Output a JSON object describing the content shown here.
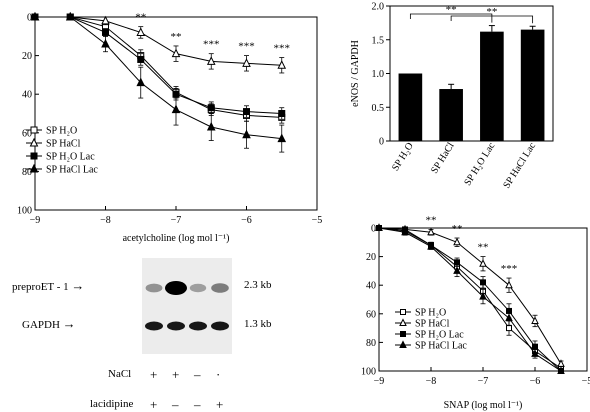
{
  "chart_data": [
    {
      "id": "ach",
      "type": "line",
      "xlabel": "acetylcholine (log mol l⁻¹)",
      "ylabel": "",
      "xlim": [
        -9,
        -5
      ],
      "ylim": [
        0,
        100
      ],
      "y_inverted": true,
      "xticks": [
        -9,
        -8,
        -7,
        -6,
        -5
      ],
      "yticks": [
        0,
        20,
        40,
        60,
        80,
        100
      ],
      "x": [
        -9,
        -8.5,
        -8,
        -7.5,
        -7,
        -6.5,
        -6,
        -5.5
      ],
      "series": [
        {
          "name": "SP H₂O",
          "marker": "square-open",
          "values": [
            0,
            0,
            5,
            20,
            39,
            48,
            51,
            52
          ],
          "errors": [
            1,
            1,
            2,
            3,
            3,
            3,
            3,
            3
          ]
        },
        {
          "name": "SP HaCl",
          "marker": "triangle-open",
          "values": [
            0,
            0,
            2,
            8,
            19,
            23,
            24,
            25
          ],
          "errors": [
            1,
            1,
            2,
            3,
            4,
            4,
            4,
            4
          ]
        },
        {
          "name": "SP H₂O Lac",
          "marker": "square-filled",
          "values": [
            0,
            0,
            8,
            22,
            40,
            47,
            49,
            50
          ],
          "errors": [
            1,
            1,
            2,
            3,
            3,
            3,
            3,
            3
          ]
        },
        {
          "name": "SP HaCl Lac",
          "marker": "triangle-filled",
          "values": [
            0,
            0,
            14,
            34,
            48,
            57,
            61,
            63
          ],
          "errors": [
            1,
            1,
            4,
            8,
            8,
            7,
            7,
            7
          ]
        }
      ],
      "annotations": [
        {
          "x": -7.5,
          "text": "**"
        },
        {
          "x": -7,
          "text": "**"
        },
        {
          "x": -6.5,
          "text": "***"
        },
        {
          "x": -6,
          "text": "***"
        },
        {
          "x": -5.5,
          "text": "***"
        }
      ],
      "legend": "bottom-left"
    },
    {
      "id": "enos",
      "type": "bar",
      "ylabel": "eNOS / GAPDH",
      "ylim": [
        0,
        2
      ],
      "yticks": [
        "0",
        "0.5",
        "1.0",
        "1.5",
        "2.0"
      ],
      "categories": [
        "SP H₂O",
        "SP HaCl",
        "SP H₂O Lac",
        "SP HaCl Lac"
      ],
      "values": [
        1.0,
        0.77,
        1.62,
        1.65
      ],
      "errors": [
        0,
        0.07,
        0.09,
        0.05
      ],
      "significance": [
        {
          "from": 0,
          "to": 2,
          "text": "**"
        },
        {
          "from": 1,
          "to": 3,
          "text": "**"
        }
      ]
    },
    {
      "id": "snap",
      "type": "line",
      "xlabel": "SNAP (log mol l⁻¹)",
      "ylabel": "",
      "xlim": [
        -9,
        -5
      ],
      "ylim": [
        0,
        100
      ],
      "y_inverted": true,
      "xticks": [
        -9,
        -8,
        -7,
        -6,
        -5
      ],
      "yticks": [
        0,
        20,
        40,
        60,
        80,
        100
      ],
      "x": [
        -9,
        -8.5,
        -8,
        -7.5,
        -7,
        -6.5,
        -6,
        -5.5
      ],
      "series": [
        {
          "name": "SP H₂O",
          "marker": "square-open",
          "values": [
            0,
            2,
            12,
            27,
            44,
            70,
            86,
            98
          ],
          "errors": [
            1,
            2,
            2,
            4,
            5,
            5,
            3,
            2
          ]
        },
        {
          "name": "SP HaCl",
          "marker": "triangle-open",
          "values": [
            0,
            1,
            3,
            10,
            25,
            40,
            65,
            95
          ],
          "errors": [
            1,
            1,
            2,
            3,
            5,
            5,
            4,
            2
          ]
        },
        {
          "name": "SP H₂O Lac",
          "marker": "square-filled",
          "values": [
            0,
            1,
            12,
            24,
            38,
            58,
            83,
            100
          ],
          "errors": [
            1,
            1,
            2,
            3,
            4,
            5,
            4,
            1
          ]
        },
        {
          "name": "SP HaCl Lac",
          "marker": "triangle-filled",
          "values": [
            0,
            3,
            13,
            30,
            48,
            63,
            88,
            100
          ],
          "errors": [
            1,
            2,
            2,
            4,
            5,
            5,
            3,
            1
          ]
        }
      ],
      "annotations": [
        {
          "x": -8,
          "text": "**"
        },
        {
          "x": -7.5,
          "text": "**"
        },
        {
          "x": -7,
          "text": "**"
        },
        {
          "x": -6.5,
          "text": "***"
        }
      ],
      "legend": "bottom-left"
    }
  ],
  "blot": {
    "bands": [
      {
        "name": "preproET - 1",
        "size": "2.3 kb",
        "intensities": [
          0.35,
          1.0,
          0.3,
          0.45
        ]
      },
      {
        "name": "GAPDH",
        "size": "1.3 kb",
        "intensities": [
          0.9,
          0.9,
          0.9,
          0.9
        ]
      }
    ],
    "conditions": [
      {
        "label": "NaCl",
        "values": [
          "+",
          "+",
          "–",
          "·"
        ]
      },
      {
        "label": "lacidipine",
        "values": [
          "+",
          "–",
          "–",
          "+"
        ]
      }
    ]
  }
}
